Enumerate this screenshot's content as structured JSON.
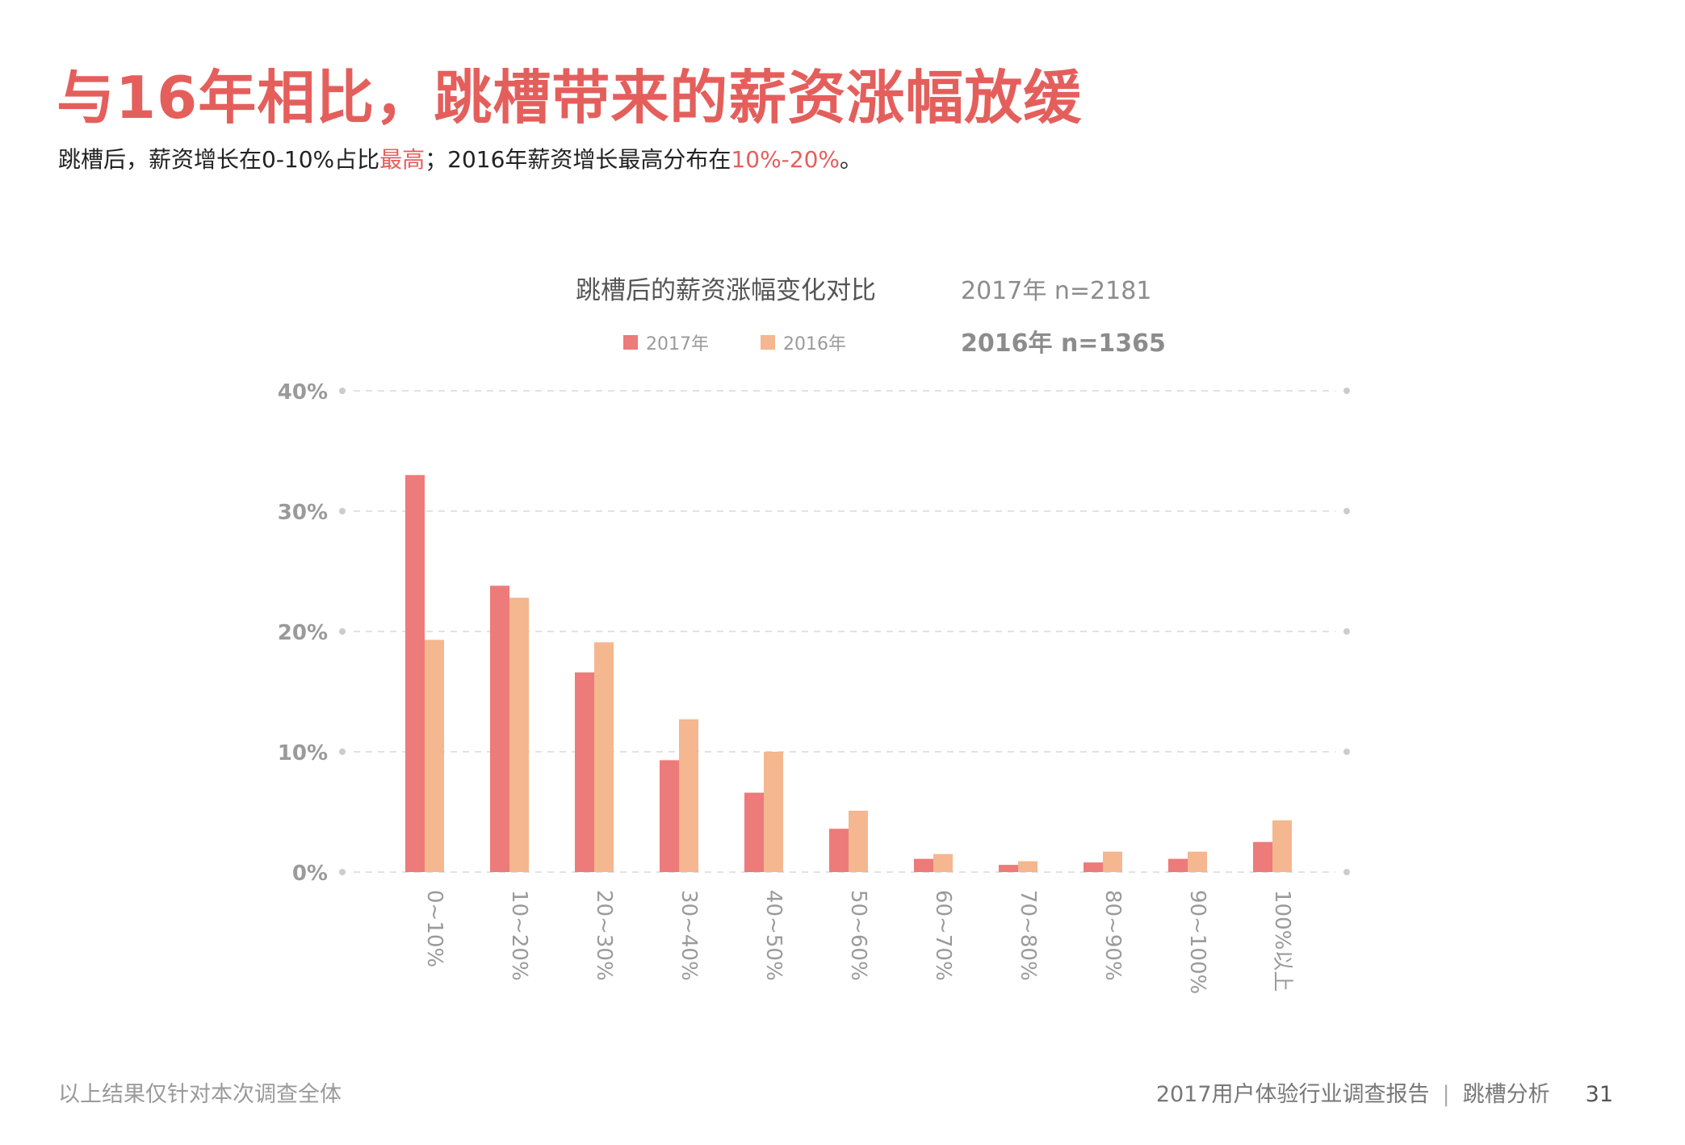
{
  "page": {
    "title": "与16年相比，跳槽带来的薪资涨幅放缓",
    "subtitle_parts": [
      "跳槽后，薪资增长在0-10%占比",
      "最高",
      "；2016年薪资增长最高分布在",
      "10%-20%",
      "。"
    ],
    "footnote": "以上结果仅针对本次调查全体",
    "footer_report": "2017用户体验行业调查报告",
    "footer_separator": "|",
    "footer_section": "跳槽分析",
    "page_number": "31"
  },
  "colors": {
    "accent": "#e45f5c",
    "series_2017": "#ec7b7a",
    "series_2016": "#f4b78f",
    "grid": "#d9d9d9",
    "axis_text": "#9a9a9a"
  },
  "chart_data": {
    "type": "bar",
    "title": "跳槽后的薪资涨幅变化对比",
    "samples": [
      "2017年 n=2181",
      "2016年 n=1365"
    ],
    "categories": [
      "0~10%",
      "10~20%",
      "20~30%",
      "30~40%",
      "40~50%",
      "50~60%",
      "60~70%",
      "70~80%",
      "80~90%",
      "90~100%",
      "100%以上"
    ],
    "series": [
      {
        "name": "2017年",
        "values": [
          33.0,
          23.8,
          16.6,
          9.3,
          6.6,
          3.6,
          1.1,
          0.6,
          0.8,
          1.1,
          2.5
        ]
      },
      {
        "name": "2016年",
        "values": [
          19.3,
          22.8,
          19.1,
          12.7,
          10.0,
          5.1,
          1.5,
          0.9,
          1.7,
          1.7,
          4.3
        ]
      }
    ],
    "ylim": [
      0,
      40
    ],
    "yticks": [
      "0%",
      "10%",
      "20%",
      "30%",
      "40%"
    ],
    "xlabel": "",
    "ylabel": "",
    "grid": true,
    "legend_position": "top"
  }
}
